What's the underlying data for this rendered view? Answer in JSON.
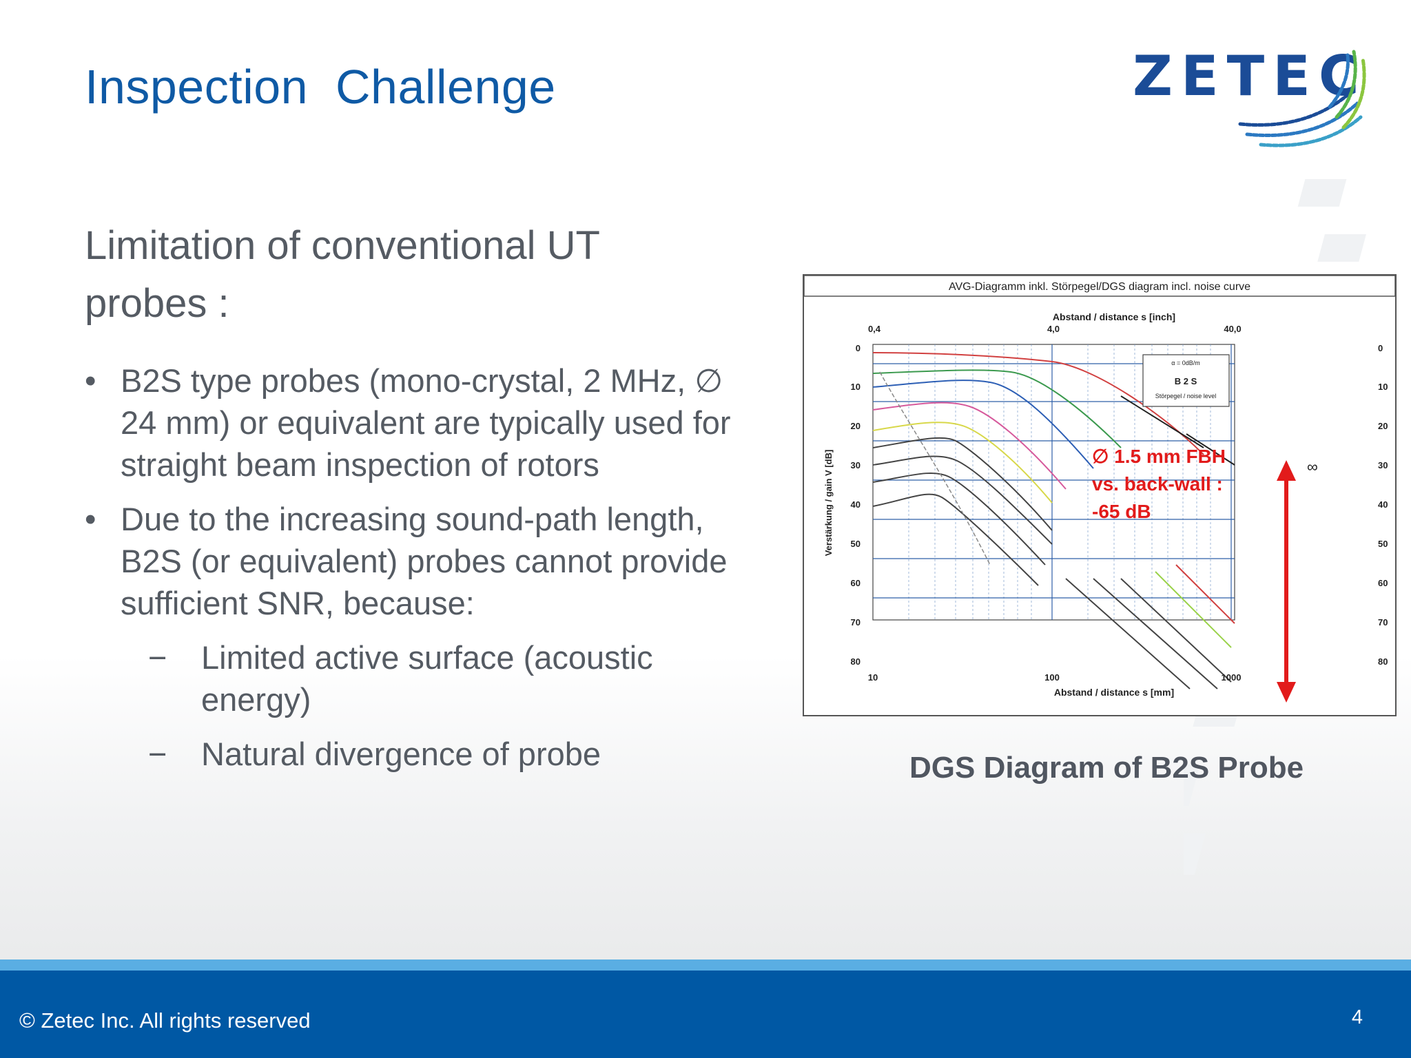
{
  "slide": {
    "title": "Inspection  Challenge",
    "subheading": "Limitation of conventional UT probes :",
    "bullets": [
      {
        "text": "B2S type probes (mono-crystal, 2 MHz, ∅ 24 mm) or equivalent are typically used for straight beam inspection of rotors"
      },
      {
        "text": "Due to the increasing sound-path length, B2S (or equivalent)  probes cannot provide sufficient SNR, because:",
        "subbullets": [
          "Limited active surface (acoustic energy)",
          "Natural divergence of probe"
        ]
      }
    ],
    "bullet_symbol": "•",
    "subbullet_symbol": "−"
  },
  "logo": {
    "text": "ZETEC"
  },
  "diagram": {
    "header": "AVG-Diagramm inkl. Störpegel/DGS diagram incl. noise curve",
    "top_axis_label": "Abstand / distance s [inch]",
    "top_ticks": [
      "0,4",
      "4,0",
      "40,0"
    ],
    "bottom_axis_label": "Abstand / distance s [mm]",
    "bottom_ticks": [
      "10",
      "100",
      "1000"
    ],
    "y_axis_label": "Verstärkung / gain V [dB]",
    "y_ticks": [
      "0",
      "10",
      "20",
      "30",
      "40",
      "50",
      "60",
      "70",
      "80"
    ],
    "legend_line1": "α = 0dB/m",
    "legend_title": "B 2 S",
    "legend_line2": "Störpegel / noise level",
    "annotation": [
      "∅ 1.5 mm FBH",
      "vs. back-wall :",
      "-65 dB"
    ],
    "infinity_label": "∞"
  },
  "caption": "DGS Diagram of B2S Probe",
  "footer": {
    "copyright": "© Zetec Inc. All rights reserved",
    "page_number": "4"
  },
  "colors": {
    "title": "#0f5aa5",
    "body_text": "#555b63",
    "footer_bar": "#0058a4",
    "footer_stripe": "#5aaee3",
    "annotation_red": "#e21b1b",
    "logo_blue": "#1b4c97"
  }
}
